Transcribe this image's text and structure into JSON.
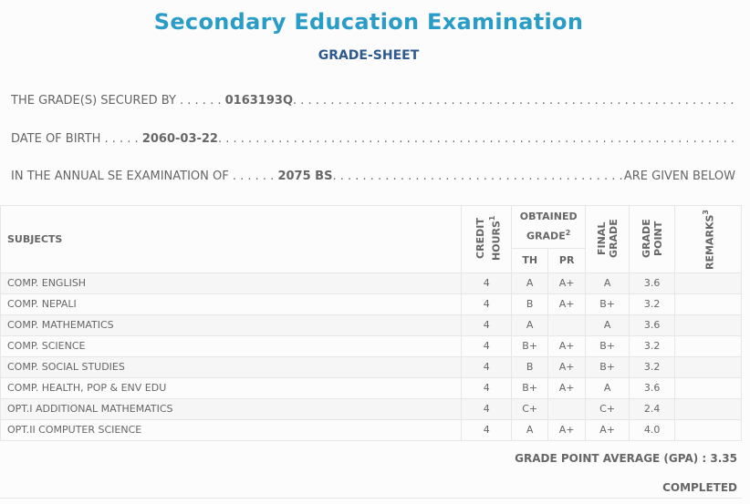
{
  "title": "Secondary Education Examination",
  "subtitle": "GRADE-SHEET",
  "info": {
    "secured_label": "THE GRADE(S) SECURED BY . . . . . .",
    "symbol": "0163193Q",
    "dob_label": "DATE OF BIRTH . . . . .",
    "dob": "2060-03-22",
    "exam_label": "IN THE ANNUAL SE EXAMINATION OF . . . . . .",
    "exam_year": "2075 BS",
    "given_below": "ARE GIVEN BELOW"
  },
  "headers": {
    "subjects": "SUBJECTS",
    "credit": "CREDIT HOURS",
    "credit_sup": "1",
    "obtained": "OBTAINED GRADE",
    "obtained_sup": "2",
    "th": "TH",
    "pr": "PR",
    "final": "FINAL GRADE",
    "gp": "GRADE POINT",
    "remarks": "REMARKS",
    "remarks_sup": "3"
  },
  "rows": [
    {
      "subject": "COMP. ENGLISH",
      "credit": "4",
      "th": "A",
      "pr": "A+",
      "final": "A",
      "gp": "3.6",
      "remarks": ""
    },
    {
      "subject": "COMP. NEPALI",
      "credit": "4",
      "th": "B",
      "pr": "A+",
      "final": "B+",
      "gp": "3.2",
      "remarks": ""
    },
    {
      "subject": "COMP. MATHEMATICS",
      "credit": "4",
      "th": "A",
      "pr": "",
      "final": "A",
      "gp": "3.6",
      "remarks": ""
    },
    {
      "subject": "COMP. SCIENCE",
      "credit": "4",
      "th": "B+",
      "pr": "A+",
      "final": "B+",
      "gp": "3.2",
      "remarks": ""
    },
    {
      "subject": "COMP. SOCIAL STUDIES",
      "credit": "4",
      "th": "B",
      "pr": "A+",
      "final": "B+",
      "gp": "3.2",
      "remarks": ""
    },
    {
      "subject": "COMP. HEALTH, POP & ENV EDU",
      "credit": "4",
      "th": "B+",
      "pr": "A+",
      "final": "A",
      "gp": "3.6",
      "remarks": ""
    },
    {
      "subject": "OPT.I ADDITIONAL MATHEMATICS",
      "credit": "4",
      "th": "C+",
      "pr": "",
      "final": "C+",
      "gp": "2.4",
      "remarks": ""
    },
    {
      "subject": "OPT.II COMPUTER SCIENCE",
      "credit": "4",
      "th": "A",
      "pr": "A+",
      "final": "A+",
      "gp": "4.0",
      "remarks": ""
    }
  ],
  "gpa": "GRADE POINT AVERAGE (GPA) : 3.35",
  "status": "COMPLETED"
}
